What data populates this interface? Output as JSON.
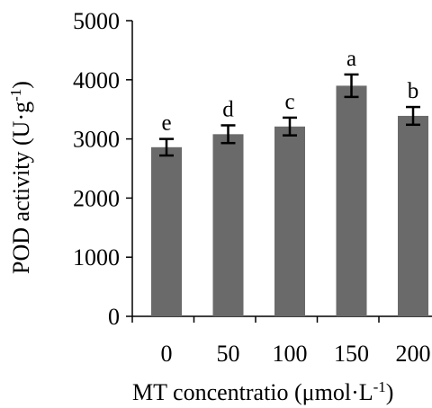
{
  "chart_data": {
    "type": "bar",
    "xlabel": "MT concentratio (μmol·L",
    "xlabel_sup": "-1",
    "xlabel_tail": ")",
    "ylabel": "POD activity (U·g",
    "ylabel_sup": "-1",
    "ylabel_tail": ")",
    "categories": [
      "0",
      "50",
      "100",
      "150",
      "200"
    ],
    "values": [
      2860,
      3080,
      3210,
      3900,
      3390
    ],
    "errors": [
      140,
      150,
      150,
      190,
      150
    ],
    "significance": [
      "e",
      "d",
      "c",
      "a",
      "b"
    ],
    "ylim": [
      0,
      5000
    ],
    "yticks": [
      "0",
      "1000",
      "2000",
      "3000",
      "4000",
      "5000"
    ],
    "ytick_values": [
      0,
      1000,
      2000,
      3000,
      4000,
      5000
    ],
    "bar_color": "#6a6a6a",
    "grid": false,
    "legend": "none"
  }
}
